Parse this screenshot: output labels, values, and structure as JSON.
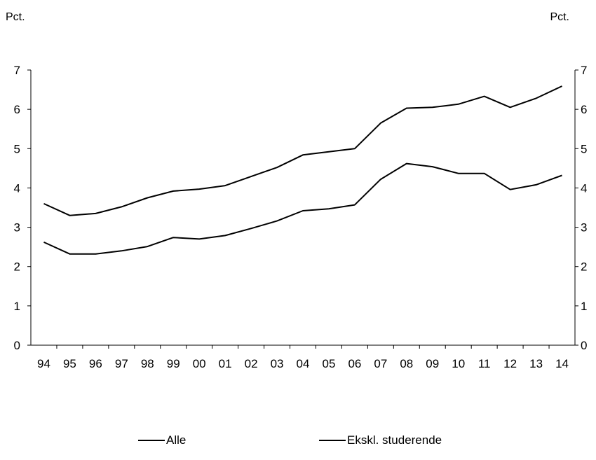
{
  "chart_data": {
    "type": "line",
    "left_unit": "Pct.",
    "right_unit": "Pct.",
    "categories": [
      "94",
      "95",
      "96",
      "97",
      "98",
      "99",
      "00",
      "01",
      "02",
      "03",
      "04",
      "05",
      "06",
      "07",
      "08",
      "09",
      "10",
      "11",
      "12",
      "13",
      "14"
    ],
    "y_ticks": [
      "0",
      "1",
      "2",
      "3",
      "4",
      "5",
      "6",
      "7"
    ],
    "ylim": [
      0,
      7
    ],
    "y2lim": [
      0,
      7
    ],
    "grid": false,
    "legend_position": "bottom",
    "series": [
      {
        "name": "Alle",
        "color": "#000000",
        "values": [
          3.6,
          3.3,
          3.35,
          3.52,
          3.75,
          3.92,
          3.97,
          4.06,
          4.29,
          4.52,
          4.84,
          4.92,
          5.0,
          5.65,
          6.03,
          6.05,
          6.13,
          6.33,
          6.05,
          6.28,
          6.59
        ]
      },
      {
        "name": "Ekskl. studerende",
        "color": "#000000",
        "values": [
          2.62,
          2.32,
          2.32,
          2.4,
          2.51,
          2.74,
          2.7,
          2.79,
          2.97,
          3.16,
          3.42,
          3.47,
          3.57,
          4.22,
          4.62,
          4.54,
          4.37,
          4.37,
          3.96,
          4.08,
          4.32
        ]
      }
    ]
  }
}
